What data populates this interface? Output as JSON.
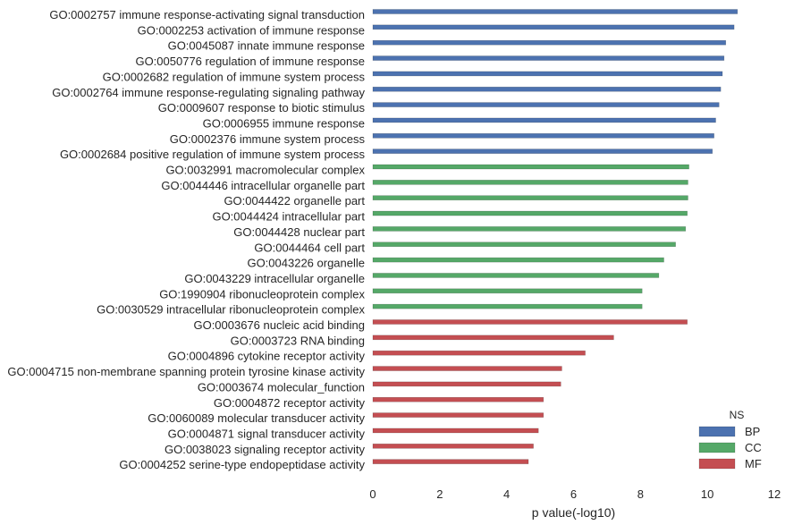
{
  "chart_data": {
    "type": "bar",
    "orientation": "horizontal",
    "xlabel": "p value(-log10)",
    "ylabel": "",
    "xlim": [
      0,
      12
    ],
    "xticks": [
      "0",
      "2",
      "4",
      "6",
      "8",
      "10",
      "12"
    ],
    "grid": false,
    "legend": {
      "title": "NS",
      "placement": "bottom-right",
      "entries": [
        {
          "name": "BP",
          "color": "#4c72b0"
        },
        {
          "name": "CC",
          "color": "#55a868"
        },
        {
          "name": "MF",
          "color": "#c44e52"
        }
      ]
    },
    "categories": [
      {
        "label": "GO:0002757 immune response-activating signal transduction",
        "value": 10.9,
        "group": "BP"
      },
      {
        "label": "GO:0002253 activation of immune response",
        "value": 10.8,
        "group": "BP"
      },
      {
        "label": "GO:0045087 innate immune response",
        "value": 10.55,
        "group": "BP"
      },
      {
        "label": "GO:0050776 regulation of immune response",
        "value": 10.5,
        "group": "BP"
      },
      {
        "label": "GO:0002682 regulation of immune system process",
        "value": 10.45,
        "group": "BP"
      },
      {
        "label": "GO:0002764 immune response-regulating signaling pathway",
        "value": 10.4,
        "group": "BP"
      },
      {
        "label": "GO:0009607 response to biotic stimulus",
        "value": 10.35,
        "group": "BP"
      },
      {
        "label": "GO:0006955 immune response",
        "value": 10.25,
        "group": "BP"
      },
      {
        "label": "GO:0002376 immune system process",
        "value": 10.2,
        "group": "BP"
      },
      {
        "label": "GO:0002684 positive regulation of immune system process",
        "value": 10.15,
        "group": "BP"
      },
      {
        "label": "GO:0032991 macromolecular complex",
        "value": 9.45,
        "group": "CC"
      },
      {
        "label": "GO:0044446 intracellular organelle part",
        "value": 9.42,
        "group": "CC"
      },
      {
        "label": "GO:0044422 organelle part",
        "value": 9.42,
        "group": "CC"
      },
      {
        "label": "GO:0044424 intracellular part",
        "value": 9.4,
        "group": "CC"
      },
      {
        "label": "GO:0044428 nuclear part",
        "value": 9.35,
        "group": "CC"
      },
      {
        "label": "GO:0044464 cell part",
        "value": 9.05,
        "group": "CC"
      },
      {
        "label": "GO:0043226 organelle",
        "value": 8.7,
        "group": "CC"
      },
      {
        "label": "GO:0043229 intracellular organelle",
        "value": 8.55,
        "group": "CC"
      },
      {
        "label": "GO:1990904 ribonucleoprotein complex",
        "value": 8.05,
        "group": "CC"
      },
      {
        "label": "GO:0030529 intracellular ribonucleoprotein complex",
        "value": 8.05,
        "group": "CC"
      },
      {
        "label": "GO:0003676 nucleic acid binding",
        "value": 9.4,
        "group": "MF"
      },
      {
        "label": "GO:0003723 RNA binding",
        "value": 7.2,
        "group": "MF"
      },
      {
        "label": "GO:0004896 cytokine receptor activity",
        "value": 6.35,
        "group": "MF"
      },
      {
        "label": "GO:0004715 non-membrane spanning protein tyrosine kinase activity",
        "value": 5.65,
        "group": "MF"
      },
      {
        "label": "GO:0003674 molecular_function",
        "value": 5.62,
        "group": "MF"
      },
      {
        "label": "GO:0004872 receptor activity",
        "value": 5.1,
        "group": "MF"
      },
      {
        "label": "GO:0060089 molecular transducer activity",
        "value": 5.1,
        "group": "MF"
      },
      {
        "label": "GO:0004871 signal transducer activity",
        "value": 4.95,
        "group": "MF"
      },
      {
        "label": "GO:0038023 signaling receptor activity",
        "value": 4.8,
        "group": "MF"
      },
      {
        "label": "GO:0004252 serine-type endopeptidase activity",
        "value": 4.65,
        "group": "MF"
      }
    ]
  }
}
